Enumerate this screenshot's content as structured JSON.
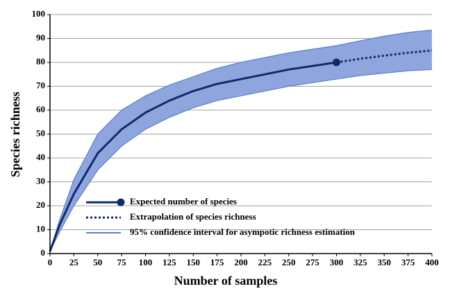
{
  "chart_data": {
    "type": "line",
    "x_label": "Number of samples",
    "y_label": "Species richness",
    "x": [
      0,
      10,
      25,
      50,
      75,
      100,
      125,
      150,
      175,
      200,
      225,
      250,
      275,
      300,
      325,
      350,
      375,
      400
    ],
    "series": [
      {
        "name": "Expected number of species",
        "color": "#0d2a6b",
        "style": "solid",
        "end_marker": true,
        "values": [
          1,
          12,
          25,
          42,
          52,
          59,
          64,
          68,
          71,
          73,
          75,
          77,
          78.5,
          80,
          null,
          null,
          null,
          null
        ]
      },
      {
        "name": "Extrapolation of species richness",
        "color": "#0d2a6b",
        "style": "dotted",
        "values": [
          null,
          null,
          null,
          null,
          null,
          null,
          null,
          null,
          null,
          null,
          null,
          null,
          null,
          80,
          81.5,
          82.8,
          84,
          85
        ]
      }
    ],
    "band": {
      "name": "95% confidence interval for asympotic richness estimation",
      "color": "#8ea6dd",
      "edge_color": "#5a7fc8",
      "upper": [
        1,
        14,
        31,
        50,
        60,
        66,
        70.5,
        74,
        77.5,
        80,
        82,
        84,
        85.5,
        87,
        89,
        91,
        92.5,
        93.5
      ],
      "lower": [
        1,
        9,
        20,
        35,
        45,
        52,
        57,
        61,
        64,
        66,
        68,
        70,
        71.5,
        73,
        74.5,
        75.5,
        76.5,
        77
      ]
    },
    "xlim": [
      0,
      400
    ],
    "xticks": [
      0,
      25,
      50,
      75,
      100,
      125,
      150,
      175,
      200,
      225,
      250,
      275,
      300,
      325,
      350,
      375,
      400
    ],
    "ylim": [
      0,
      100
    ],
    "yticks": [
      0,
      10,
      20,
      30,
      40,
      50,
      60,
      70,
      80,
      90,
      100
    ],
    "grid": true,
    "legend": "lower-left"
  }
}
